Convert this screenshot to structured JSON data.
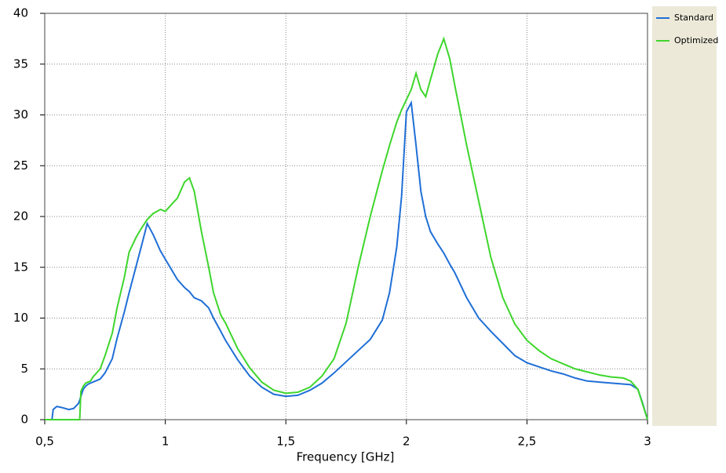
{
  "chart_data": {
    "type": "line",
    "xlabel": "Frequency [GHz]",
    "x": [
      0.5,
      0.53,
      0.535,
      0.55,
      0.57,
      0.6,
      0.62,
      0.64,
      0.645,
      0.65,
      0.66,
      0.67,
      0.68,
      0.69,
      0.7,
      0.73,
      0.75,
      0.78,
      0.8,
      0.83,
      0.85,
      0.88,
      0.9,
      0.925,
      0.95,
      0.98,
      1.0,
      1.03,
      1.05,
      1.08,
      1.1,
      1.12,
      1.15,
      1.18,
      1.2,
      1.23,
      1.25,
      1.3,
      1.35,
      1.4,
      1.45,
      1.5,
      1.55,
      1.6,
      1.65,
      1.7,
      1.75,
      1.8,
      1.85,
      1.9,
      1.93,
      1.96,
      1.98,
      2.0,
      2.02,
      2.04,
      2.06,
      2.08,
      2.1,
      2.13,
      2.155,
      2.18,
      2.2,
      2.25,
      2.3,
      2.35,
      2.4,
      2.45,
      2.5,
      2.55,
      2.6,
      2.65,
      2.7,
      2.75,
      2.8,
      2.85,
      2.9,
      2.93,
      2.96,
      2.98,
      3.0
    ],
    "series": [
      {
        "name": "Standard",
        "color": "#1f6fd6",
        "values": [
          0,
          0,
          1.0,
          1.3,
          1.2,
          1.0,
          1.1,
          1.6,
          1.9,
          2.3,
          3.0,
          3.3,
          3.5,
          3.6,
          3.7,
          4.0,
          4.6,
          6.0,
          8.0,
          10.6,
          12.5,
          15.2,
          17.0,
          19.3,
          18.2,
          16.6,
          15.8,
          14.6,
          13.8,
          13.0,
          12.6,
          12.0,
          11.7,
          11.0,
          10.0,
          8.7,
          7.8,
          5.9,
          4.3,
          3.2,
          2.5,
          2.3,
          2.4,
          2.9,
          3.6,
          4.6,
          5.7,
          6.8,
          7.9,
          9.8,
          12.5,
          17,
          22,
          30.3,
          31.2,
          27,
          22.5,
          20,
          18.5,
          17.3,
          16.4,
          15.3,
          14.5,
          12,
          10,
          8.7,
          7.5,
          6.3,
          5.6,
          5.2,
          4.8,
          4.5,
          4.1,
          3.8,
          3.7,
          3.6,
          3.5,
          3.45,
          3.0,
          1.6,
          0
        ]
      },
      {
        "name": "Optimized",
        "color": "#3ed62c",
        "values": [
          0,
          0,
          0,
          0,
          0,
          0,
          0,
          0,
          0,
          2.8,
          3.3,
          3.6,
          3.7,
          3.8,
          4.2,
          5,
          6.3,
          8.5,
          11,
          14,
          16.5,
          18,
          18.8,
          19.7,
          20.3,
          20.7,
          20.5,
          21.3,
          21.8,
          23.4,
          23.8,
          22.5,
          18.5,
          15,
          12.5,
          10.3,
          9.5,
          7,
          5.1,
          3.7,
          2.9,
          2.6,
          2.7,
          3.2,
          4.3,
          6,
          9.5,
          15,
          20,
          24.5,
          27,
          29.3,
          30.5,
          31.5,
          32.5,
          34.1,
          32.5,
          31.8,
          33.5,
          36,
          37.5,
          35.5,
          33,
          27,
          21.5,
          16,
          12,
          9.4,
          7.8,
          6.8,
          6,
          5.5,
          5,
          4.7,
          4.4,
          4.2,
          4.1,
          3.8,
          3.0,
          1.5,
          0
        ]
      }
    ],
    "xlim": [
      0.5,
      3
    ],
    "xticks": [
      {
        "value": 0.5,
        "label": "0,5"
      },
      1,
      {
        "value": 1.5,
        "label": "1,5"
      },
      2,
      {
        "value": 2.5,
        "label": "2,5"
      },
      3
    ],
    "ylim": [
      0,
      40
    ],
    "yticks": [
      0,
      5,
      10,
      15,
      20,
      25,
      30,
      35,
      40
    ],
    "grid": true,
    "legend": "right"
  }
}
